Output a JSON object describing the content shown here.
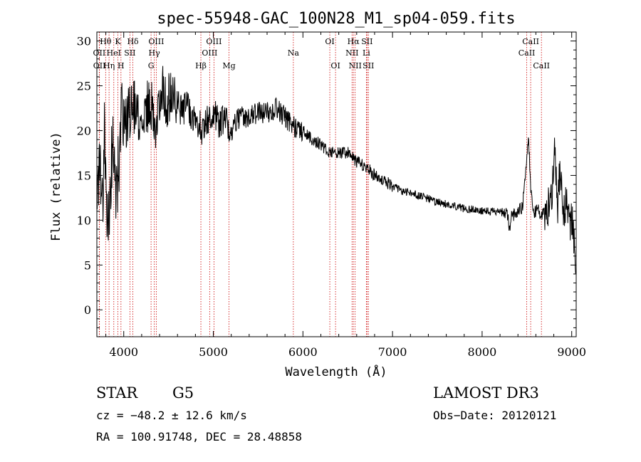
{
  "chart_data": {
    "type": "line",
    "title": "spec-55948-GAC_100N28_M1_sp04-059.fits",
    "xlabel": "Wavelength (Å)",
    "ylabel": "Flux (relative)",
    "xlim": [
      3700,
      9050
    ],
    "ylim": [
      -3,
      31
    ],
    "xticks": [
      4000,
      5000,
      6000,
      7000,
      8000,
      9000
    ],
    "yticks": [
      0,
      5,
      10,
      15,
      20,
      25,
      30
    ],
    "series": [
      {
        "name": "spectrum",
        "x": [
          3700,
          3730,
          3760,
          3790,
          3820,
          3850,
          3880,
          3910,
          3940,
          3970,
          4000,
          4030,
          4060,
          4100,
          4150,
          4200,
          4250,
          4300,
          4340,
          4380,
          4420,
          4460,
          4500,
          4550,
          4600,
          4650,
          4700,
          4750,
          4800,
          4850,
          4861,
          4900,
          4950,
          5000,
          5050,
          5100,
          5150,
          5183,
          5230,
          5300,
          5400,
          5500,
          5600,
          5700,
          5800,
          5893,
          6000,
          6100,
          6200,
          6300,
          6400,
          6500,
          6563,
          6600,
          6700,
          6800,
          6900,
          7000,
          7100,
          7200,
          7300,
          7400,
          7500,
          7600,
          7700,
          7800,
          7900,
          8000,
          8100,
          8200,
          8260,
          8290,
          8300,
          8320,
          8350,
          8400,
          8450,
          8498,
          8520,
          8542,
          8580,
          8620,
          8662,
          8700,
          8740,
          8780,
          8810,
          8840,
          8870,
          8900,
          8940,
          8980,
          9020,
          9040
        ],
        "y": [
          14,
          17,
          12,
          20,
          8,
          15,
          18,
          12,
          16,
          21,
          22,
          21,
          22,
          23,
          22,
          21,
          22,
          24,
          20,
          23,
          25,
          23,
          24,
          24,
          23,
          22,
          23,
          22,
          21,
          21,
          19,
          21,
          21,
          22,
          21,
          21,
          21,
          19,
          21,
          21.5,
          21.5,
          22,
          22,
          22.5,
          21.5,
          20.5,
          20,
          19,
          18.5,
          17.5,
          17.5,
          17.5,
          17,
          16.5,
          16,
          15,
          14.5,
          13.8,
          13.3,
          13,
          12.7,
          12.4,
          12,
          11.8,
          11.6,
          11.3,
          11.2,
          11.1,
          11,
          10.9,
          10.8,
          10.5,
          8.5,
          10.2,
          10.6,
          11,
          11.5,
          17,
          19,
          13.5,
          10.8,
          11.2,
          10.5,
          11,
          11.5,
          13,
          19,
          11,
          16,
          10.5,
          12,
          10,
          9.5,
          4
        ]
      }
    ],
    "lines": [
      {
        "label": "Hθ",
        "wave": 3798,
        "row": 0
      },
      {
        "label": "OII",
        "wave": 3727,
        "row": 1
      },
      {
        "label": "OII",
        "wave": 3729,
        "row": 2
      },
      {
        "label": "Hη",
        "wave": 3836,
        "row": 2
      },
      {
        "label": "K",
        "wave": 3934,
        "row": 0
      },
      {
        "label": "HeI",
        "wave": 3889,
        "row": 1
      },
      {
        "label": "SII",
        "wave": 4069,
        "row": 1
      },
      {
        "label": "H",
        "wave": 3969,
        "row": 2
      },
      {
        "label": "Hδ",
        "wave": 4102,
        "row": 0
      },
      {
        "label": "OIII",
        "wave": 4363,
        "row": 0
      },
      {
        "label": "Hγ",
        "wave": 4341,
        "row": 1
      },
      {
        "label": "G",
        "wave": 4305,
        "row": 2
      },
      {
        "label": "Hβ",
        "wave": 4861,
        "row": 2
      },
      {
        "label": "OIII",
        "wave": 5007,
        "row": 0
      },
      {
        "label": "OIII",
        "wave": 4959,
        "row": 1
      },
      {
        "label": "Mg",
        "wave": 5175,
        "row": 2
      },
      {
        "label": "Na",
        "wave": 5893,
        "row": 1
      },
      {
        "label": "OI",
        "wave": 6300,
        "row": 0
      },
      {
        "label": "OI",
        "wave": 6364,
        "row": 2
      },
      {
        "label": "Hα",
        "wave": 6563,
        "row": 0
      },
      {
        "label": "SII",
        "wave": 6716,
        "row": 0
      },
      {
        "label": "NII",
        "wave": 6548,
        "row": 1
      },
      {
        "label": "Li",
        "wave": 6708,
        "row": 1
      },
      {
        "label": "NII",
        "wave": 6583,
        "row": 2
      },
      {
        "label": "SII",
        "wave": 6731,
        "row": 2
      },
      {
        "label": "CaII",
        "wave": 8542,
        "row": 0
      },
      {
        "label": "CaII",
        "wave": 8498,
        "row": 1
      },
      {
        "label": "CaII",
        "wave": 8662,
        "row": 2
      }
    ],
    "line_color": "#cc0000"
  },
  "info": {
    "object_type": "STAR",
    "subclass": "G5",
    "survey": "LAMOST DR3",
    "redshift_text": "cz = −48.2 ± 12.6 km/s",
    "obs_date": "Obs−Date: 20120121",
    "coords": "RA = 100.91748, DEC =  28.48858"
  }
}
